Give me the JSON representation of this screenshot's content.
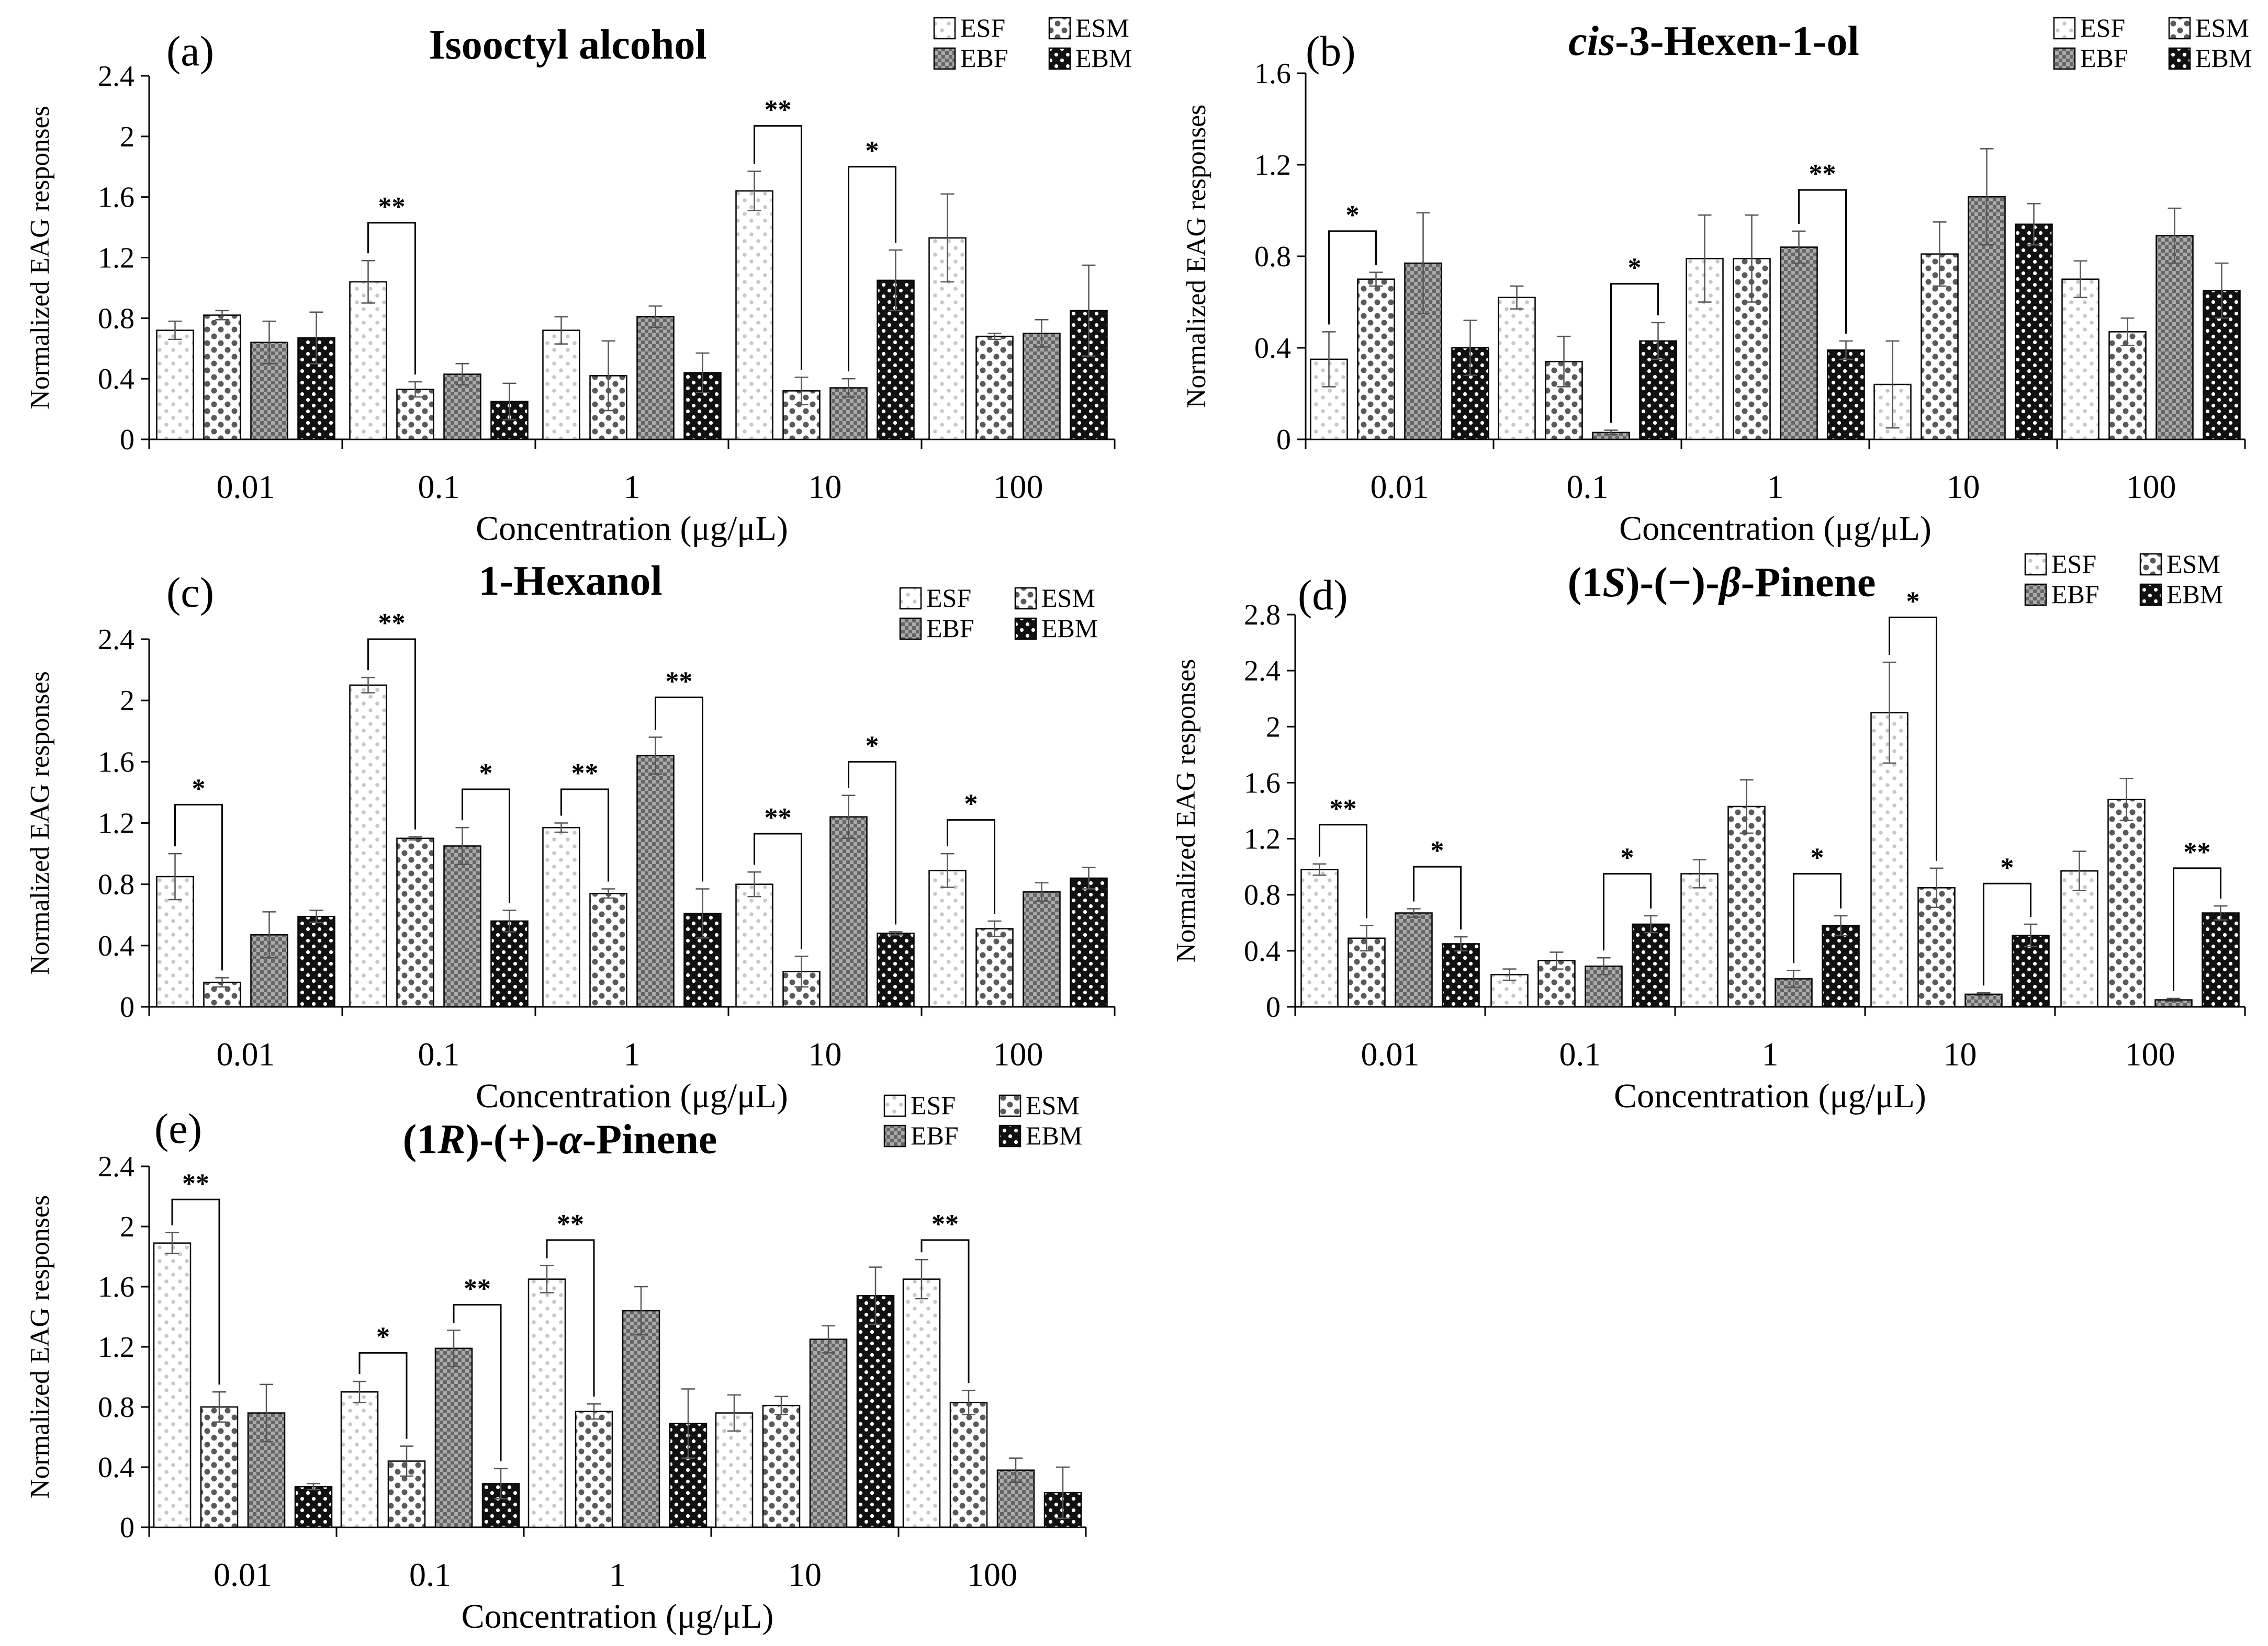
{
  "figure": {
    "legend_labels": [
      "ESF",
      "ESM",
      "EBF",
      "EBM"
    ],
    "ylabel": "Normalized EAG responses",
    "xlabel": "Concentration (μg/μL)",
    "categories": [
      "0.01",
      "0.1",
      "1",
      "10",
      "100"
    ]
  },
  "chart_data": [
    {
      "type": "bar",
      "panel_label": "(a)",
      "title_parts": [
        {
          "t": "Isooctyl alcohol",
          "i": false
        }
      ],
      "xlabel": "Concentration (μg/μL)",
      "ylabel": "Normalized EAG responses",
      "categories": [
        "0.01",
        "0.1",
        "1",
        "10",
        "100"
      ],
      "ylim": [
        0,
        2.4
      ],
      "ticks": [
        "0",
        "0.4",
        "0.8",
        "1.2",
        "1.6",
        "2",
        "2.4"
      ],
      "legend_position": "top-right",
      "series": [
        {
          "name": "ESF",
          "values": [
            0.72,
            1.04,
            0.72,
            1.64,
            1.33
          ],
          "errors": [
            0.06,
            0.14,
            0.09,
            0.13,
            0.29
          ]
        },
        {
          "name": "ESM",
          "values": [
            0.82,
            0.33,
            0.42,
            0.32,
            0.68
          ],
          "errors": [
            0.03,
            0.05,
            0.23,
            0.09,
            0.02
          ]
        },
        {
          "name": "EBF",
          "values": [
            0.64,
            0.43,
            0.81,
            0.34,
            0.7
          ],
          "errors": [
            0.14,
            0.07,
            0.07,
            0.06,
            0.09
          ]
        },
        {
          "name": "EBM",
          "values": [
            0.67,
            0.25,
            0.44,
            1.05,
            0.85
          ],
          "errors": [
            0.17,
            0.12,
            0.13,
            0.2,
            0.3
          ]
        }
      ],
      "significance": [
        {
          "category": 1,
          "from": 0,
          "to": 1,
          "label": "**",
          "y": 1.43
        },
        {
          "category": 3,
          "from": 0,
          "to": 1,
          "label": "**",
          "y": 2.07
        },
        {
          "category": 3,
          "from": 2,
          "to": 3,
          "label": "*",
          "y": 1.8
        }
      ]
    },
    {
      "type": "bar",
      "panel_label": "(b)",
      "title_parts": [
        {
          "t": "cis",
          "i": true
        },
        {
          "t": "-3-Hexen-1-ol",
          "i": false
        }
      ],
      "xlabel": "Concentration (μg/μL)",
      "ylabel": "Normalized EAG responses",
      "categories": [
        "0.01",
        "0.1",
        "1",
        "10",
        "100"
      ],
      "ylim": [
        0,
        1.6
      ],
      "ticks": [
        "0",
        "0.4",
        "0.8",
        "1.2",
        "1.6"
      ],
      "legend_position": "top-right",
      "series": [
        {
          "name": "ESF",
          "values": [
            0.35,
            0.62,
            0.79,
            0.24,
            0.7
          ],
          "errors": [
            0.12,
            0.05,
            0.19,
            0.19,
            0.08
          ]
        },
        {
          "name": "ESM",
          "values": [
            0.7,
            0.34,
            0.79,
            0.81,
            0.47
          ],
          "errors": [
            0.03,
            0.11,
            0.19,
            0.14,
            0.06
          ]
        },
        {
          "name": "EBF",
          "values": [
            0.77,
            0.03,
            0.84,
            1.06,
            0.89
          ],
          "errors": [
            0.22,
            0.01,
            0.07,
            0.21,
            0.12
          ]
        },
        {
          "name": "EBM",
          "values": [
            0.4,
            0.43,
            0.39,
            0.94,
            0.65
          ],
          "errors": [
            0.12,
            0.08,
            0.04,
            0.09,
            0.12
          ]
        }
      ],
      "significance": [
        {
          "category": 0,
          "from": 0,
          "to": 1,
          "label": "*",
          "y": 0.91
        },
        {
          "category": 1,
          "from": 2,
          "to": 3,
          "label": "*",
          "y": 0.68
        },
        {
          "category": 2,
          "from": 2,
          "to": 3,
          "label": "**",
          "y": 1.09
        }
      ]
    },
    {
      "type": "bar",
      "panel_label": "(c)",
      "title_parts": [
        {
          "t": "1-Hexanol",
          "i": false
        }
      ],
      "xlabel": "Concentration (μg/μL)",
      "ylabel": "Normalized EAG responses",
      "categories": [
        "0.01",
        "0.1",
        "1",
        "10",
        "100"
      ],
      "ylim": [
        0,
        2.4
      ],
      "ticks": [
        "0",
        "0.4",
        "0.8",
        "1.2",
        "1.6",
        "2",
        "2.4"
      ],
      "legend_position": "top-right",
      "series": [
        {
          "name": "ESF",
          "values": [
            0.85,
            2.1,
            1.17,
            0.8,
            0.89
          ],
          "errors": [
            0.15,
            0.05,
            0.03,
            0.08,
            0.11
          ]
        },
        {
          "name": "ESM",
          "values": [
            0.16,
            1.1,
            0.74,
            0.23,
            0.51
          ],
          "errors": [
            0.03,
            0.01,
            0.03,
            0.1,
            0.05
          ]
        },
        {
          "name": "EBF",
          "values": [
            0.47,
            1.05,
            1.64,
            1.24,
            0.75
          ],
          "errors": [
            0.15,
            0.12,
            0.12,
            0.14,
            0.06
          ]
        },
        {
          "name": "EBM",
          "values": [
            0.59,
            0.56,
            0.61,
            0.48,
            0.84
          ],
          "errors": [
            0.04,
            0.07,
            0.16,
            0.01,
            0.07
          ]
        }
      ],
      "significance": [
        {
          "category": 0,
          "from": 0,
          "to": 1,
          "label": "*",
          "y": 1.32
        },
        {
          "category": 1,
          "from": 0,
          "to": 1,
          "label": "**",
          "y": 2.4
        },
        {
          "category": 1,
          "from": 2,
          "to": 3,
          "label": "*",
          "y": 1.42
        },
        {
          "category": 2,
          "from": 0,
          "to": 1,
          "label": "**",
          "y": 1.42
        },
        {
          "category": 2,
          "from": 2,
          "to": 3,
          "label": "**",
          "y": 2.02
        },
        {
          "category": 3,
          "from": 0,
          "to": 1,
          "label": "**",
          "y": 1.13
        },
        {
          "category": 3,
          "from": 2,
          "to": 3,
          "label": "*",
          "y": 1.6
        },
        {
          "category": 4,
          "from": 0,
          "to": 1,
          "label": "*",
          "y": 1.22
        }
      ]
    },
    {
      "type": "bar",
      "panel_label": "(d)",
      "title_parts": [
        {
          "t": "(1",
          "i": false
        },
        {
          "t": "S",
          "i": true
        },
        {
          "t": ")-(−)-",
          "i": false
        },
        {
          "t": "β",
          "i": true
        },
        {
          "t": "-Pinene",
          "i": false
        }
      ],
      "xlabel": "Concentration (μg/μL)",
      "ylabel": "Normalized EAG responses",
      "categories": [
        "0.01",
        "0.1",
        "1",
        "10",
        "100"
      ],
      "ylim": [
        0,
        2.8
      ],
      "ticks": [
        "0",
        "0.4",
        "0.8",
        "1.2",
        "1.6",
        "2",
        "2.4",
        "2.8"
      ],
      "legend_position": "top-right",
      "series": [
        {
          "name": "ESF",
          "values": [
            0.98,
            0.23,
            0.95,
            2.1,
            0.97
          ],
          "errors": [
            0.04,
            0.04,
            0.1,
            0.36,
            0.14
          ]
        },
        {
          "name": "ESM",
          "values": [
            0.49,
            0.33,
            1.43,
            0.85,
            1.48
          ],
          "errors": [
            0.09,
            0.06,
            0.19,
            0.14,
            0.15
          ]
        },
        {
          "name": "EBF",
          "values": [
            0.67,
            0.29,
            0.2,
            0.09,
            0.05
          ],
          "errors": [
            0.03,
            0.06,
            0.06,
            0.01,
            0.01
          ]
        },
        {
          "name": "EBM",
          "values": [
            0.45,
            0.59,
            0.58,
            0.51,
            0.67
          ],
          "errors": [
            0.05,
            0.06,
            0.07,
            0.08,
            0.05
          ]
        }
      ],
      "significance": [
        {
          "category": 0,
          "from": 0,
          "to": 1,
          "label": "**",
          "y": 1.3
        },
        {
          "category": 0,
          "from": 2,
          "to": 3,
          "label": "*",
          "y": 1.0
        },
        {
          "category": 1,
          "from": 2,
          "to": 3,
          "label": "*",
          "y": 0.95
        },
        {
          "category": 2,
          "from": 2,
          "to": 3,
          "label": "*",
          "y": 0.95
        },
        {
          "category": 3,
          "from": 0,
          "to": 1,
          "label": "*",
          "y": 2.78
        },
        {
          "category": 3,
          "from": 2,
          "to": 3,
          "label": "*",
          "y": 0.88
        },
        {
          "category": 4,
          "from": 2,
          "to": 3,
          "label": "**",
          "y": 0.99
        }
      ]
    },
    {
      "type": "bar",
      "panel_label": "(e)",
      "title_parts": [
        {
          "t": "(1",
          "i": false
        },
        {
          "t": "R",
          "i": true
        },
        {
          "t": ")-(+)-",
          "i": false
        },
        {
          "t": "α",
          "i": true
        },
        {
          "t": "-Pinene",
          "i": false
        }
      ],
      "xlabel": "Concentration (μg/μL)",
      "ylabel": "Normalized EAG responses",
      "categories": [
        "0.01",
        "0.1",
        "1",
        "10",
        "100"
      ],
      "ylim": [
        0,
        2.4
      ],
      "ticks": [
        "0",
        "0.4",
        "0.8",
        "1.2",
        "1.6",
        "2",
        "2.4"
      ],
      "legend_position": "top-right",
      "series": [
        {
          "name": "ESF",
          "values": [
            1.89,
            0.9,
            1.65,
            0.76,
            1.65
          ],
          "errors": [
            0.07,
            0.07,
            0.09,
            0.12,
            0.13
          ]
        },
        {
          "name": "ESM",
          "values": [
            0.8,
            0.44,
            0.77,
            0.81,
            0.83
          ],
          "errors": [
            0.1,
            0.1,
            0.05,
            0.06,
            0.08
          ]
        },
        {
          "name": "EBF",
          "values": [
            0.76,
            1.19,
            1.44,
            1.25,
            0.38
          ],
          "errors": [
            0.19,
            0.12,
            0.16,
            0.09,
            0.08
          ]
        },
        {
          "name": "EBM",
          "values": [
            0.27,
            0.29,
            0.69,
            1.54,
            0.23
          ],
          "errors": [
            0.02,
            0.1,
            0.23,
            0.19,
            0.17
          ]
        }
      ],
      "significance": [
        {
          "category": 0,
          "from": 0,
          "to": 1,
          "label": "**",
          "y": 2.18
        },
        {
          "category": 1,
          "from": 0,
          "to": 1,
          "label": "*",
          "y": 1.16
        },
        {
          "category": 1,
          "from": 2,
          "to": 3,
          "label": "**",
          "y": 1.48
        },
        {
          "category": 2,
          "from": 0,
          "to": 1,
          "label": "**",
          "y": 1.91
        },
        {
          "category": 4,
          "from": 0,
          "to": 1,
          "label": "**",
          "y": 1.91
        }
      ]
    }
  ]
}
